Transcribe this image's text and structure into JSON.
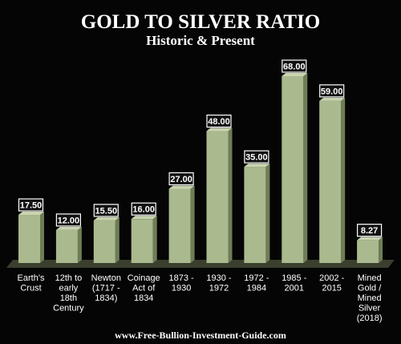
{
  "chart_data": {
    "type": "bar",
    "title": "GOLD TO SILVER RATIO",
    "subtitle": "Historic & Present",
    "categories": [
      [
        "Earth's",
        "Crust"
      ],
      [
        "12th to",
        "early",
        "18th",
        "Century"
      ],
      [
        "Newton",
        "(1717 -",
        "1834)"
      ],
      [
        "Coinage",
        "Act of",
        "1834"
      ],
      [
        "1873 -",
        "1930"
      ],
      [
        "1930 -",
        "1972"
      ],
      [
        "1972 -",
        "1984"
      ],
      [
        "1985 -",
        "2001"
      ],
      [
        "2002 -",
        "2015"
      ],
      [
        "Mined",
        "Gold /",
        "Mined",
        "Silver",
        "(2018)"
      ]
    ],
    "values": [
      17.5,
      12.0,
      15.5,
      16.0,
      27.0,
      48.0,
      35.0,
      68.0,
      59.0,
      8.27
    ],
    "value_labels": [
      "17.50",
      "12.00",
      "15.50",
      "16.00",
      "27.00",
      "48.00",
      "35.00",
      "68.00",
      "59.00",
      "8.27"
    ],
    "ylim": [
      0,
      68
    ],
    "grid": false,
    "legend": "none",
    "colors": {
      "background": "#050505",
      "bar_face": "#aab98e",
      "bar_side": "#6f7d57",
      "bar_top": "#c9d4b0",
      "floor": "#3a3f2e",
      "label_box": "#111111",
      "label_border": "#ffffff",
      "text": "#ffffff"
    }
  },
  "footer": "www.Free-Bullion-Investment-Guide.com"
}
